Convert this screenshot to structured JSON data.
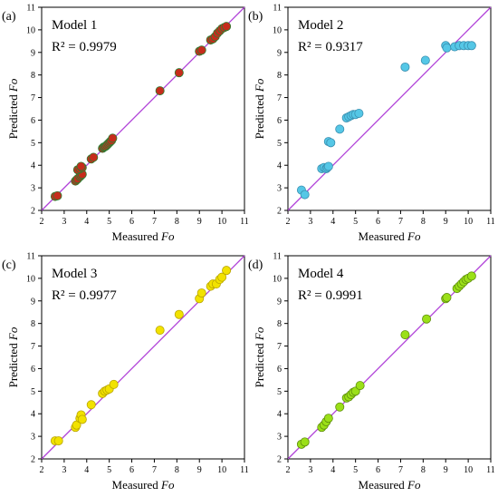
{
  "chart_data": [
    {
      "type": "scatter",
      "panel_label": "(a)",
      "model_label": "Model 1",
      "r2_label": "R² = 0.9979",
      "xlabel_prefix": "Measured ",
      "xlabel_var": "Fo",
      "ylabel_prefix": "Predicted ",
      "ylabel_var": "Fo",
      "xlim": [
        2,
        11
      ],
      "ylim": [
        2,
        11
      ],
      "ticks": [
        "2",
        "3",
        "4",
        "5",
        "6",
        "7",
        "8",
        "9",
        "10",
        "11"
      ],
      "identity_line": true,
      "marker_fill": "#c62c1c",
      "marker_edge": "#2e7d32",
      "line_color": "#b040d8",
      "points": [
        [
          2.6,
          2.62
        ],
        [
          2.7,
          2.65
        ],
        [
          3.5,
          3.3
        ],
        [
          3.55,
          3.35
        ],
        [
          3.6,
          3.4
        ],
        [
          3.7,
          3.5
        ],
        [
          3.75,
          3.55
        ],
        [
          3.8,
          3.6
        ],
        [
          3.6,
          3.8
        ],
        [
          3.7,
          3.85
        ],
        [
          3.8,
          3.9
        ],
        [
          3.75,
          3.95
        ],
        [
          4.2,
          4.28
        ],
        [
          4.3,
          4.35
        ],
        [
          4.7,
          4.75
        ],
        [
          4.75,
          4.8
        ],
        [
          4.8,
          4.82
        ],
        [
          4.85,
          4.85
        ],
        [
          4.9,
          4.9
        ],
        [
          4.95,
          4.95
        ],
        [
          5.0,
          5.0
        ],
        [
          5.05,
          5.05
        ],
        [
          5.1,
          5.1
        ],
        [
          5.15,
          5.2
        ],
        [
          7.25,
          7.3
        ],
        [
          8.1,
          8.1
        ],
        [
          9.0,
          9.05
        ],
        [
          9.1,
          9.1
        ],
        [
          9.5,
          9.55
        ],
        [
          9.6,
          9.6
        ],
        [
          9.7,
          9.7
        ],
        [
          9.8,
          9.85
        ],
        [
          9.9,
          9.95
        ],
        [
          10.0,
          10.05
        ],
        [
          10.1,
          10.1
        ],
        [
          10.2,
          10.15
        ]
      ]
    },
    {
      "type": "scatter",
      "panel_label": "(b)",
      "model_label": "Model 2",
      "r2_label": "R² = 0.9317",
      "xlabel_prefix": "Measured ",
      "xlabel_var": "Fo",
      "ylabel_prefix": "Predicted ",
      "ylabel_var": "Fo",
      "xlim": [
        2,
        11
      ],
      "ylim": [
        2,
        11
      ],
      "ticks": [
        "2",
        "3",
        "4",
        "5",
        "6",
        "7",
        "8",
        "9",
        "10",
        "11"
      ],
      "identity_line": true,
      "marker_fill": "#55c7e6",
      "marker_edge": "#3a8fb0",
      "line_color": "#b040d8",
      "points": [
        [
          2.6,
          2.9
        ],
        [
          2.75,
          2.7
        ],
        [
          3.5,
          3.85
        ],
        [
          3.6,
          3.9
        ],
        [
          3.7,
          3.85
        ],
        [
          3.75,
          3.9
        ],
        [
          3.8,
          3.95
        ],
        [
          3.8,
          5.05
        ],
        [
          3.9,
          5.0
        ],
        [
          4.3,
          5.6
        ],
        [
          4.6,
          6.1
        ],
        [
          4.7,
          6.15
        ],
        [
          4.8,
          6.2
        ],
        [
          4.9,
          6.25
        ],
        [
          5.0,
          6.25
        ],
        [
          5.15,
          6.3
        ],
        [
          7.2,
          8.35
        ],
        [
          8.1,
          8.65
        ],
        [
          9.0,
          9.3
        ],
        [
          9.05,
          9.2
        ],
        [
          9.4,
          9.25
        ],
        [
          9.6,
          9.3
        ],
        [
          9.8,
          9.3
        ],
        [
          10.0,
          9.3
        ],
        [
          10.15,
          9.3
        ]
      ]
    },
    {
      "type": "scatter",
      "panel_label": "(c)",
      "model_label": "Model 3",
      "r2_label": "R² = 0.9977",
      "xlabel_prefix": "Measured ",
      "xlabel_var": "Fo",
      "ylabel_prefix": "Predicted ",
      "ylabel_var": "Fo",
      "xlim": [
        2,
        11
      ],
      "ylim": [
        2,
        11
      ],
      "ticks": [
        "2",
        "3",
        "4",
        "5",
        "6",
        "7",
        "8",
        "9",
        "10",
        "11"
      ],
      "identity_line": true,
      "marker_fill": "#f2e200",
      "marker_edge": "#b8a500",
      "line_color": "#b040d8",
      "points": [
        [
          2.6,
          2.8
        ],
        [
          2.75,
          2.8
        ],
        [
          3.5,
          3.4
        ],
        [
          3.55,
          3.5
        ],
        [
          3.7,
          3.8
        ],
        [
          3.75,
          3.95
        ],
        [
          3.8,
          3.75
        ],
        [
          4.2,
          4.4
        ],
        [
          4.7,
          4.9
        ],
        [
          4.8,
          5.0
        ],
        [
          4.9,
          5.05
        ],
        [
          5.0,
          5.1
        ],
        [
          5.2,
          5.3
        ],
        [
          7.25,
          7.7
        ],
        [
          8.1,
          8.4
        ],
        [
          9.0,
          9.1
        ],
        [
          9.1,
          9.35
        ],
        [
          9.5,
          9.65
        ],
        [
          9.6,
          9.75
        ],
        [
          9.75,
          9.75
        ],
        [
          9.9,
          9.95
        ],
        [
          10.0,
          10.05
        ],
        [
          10.2,
          10.35
        ]
      ]
    },
    {
      "type": "scatter",
      "panel_label": "(d)",
      "model_label": "Model 4",
      "r2_label": "R² = 0.9991",
      "xlabel_prefix": "Measured ",
      "xlabel_var": "Fo",
      "ylabel_prefix": "Predicted ",
      "ylabel_var": "Fo",
      "xlim": [
        2,
        11
      ],
      "ylim": [
        2,
        11
      ],
      "ticks": [
        "2",
        "3",
        "4",
        "5",
        "6",
        "7",
        "8",
        "9",
        "10",
        "11"
      ],
      "identity_line": true,
      "marker_fill": "#9be018",
      "marker_edge": "#5e8d0d",
      "line_color": "#b040d8",
      "points": [
        [
          2.6,
          2.65
        ],
        [
          2.75,
          2.75
        ],
        [
          3.5,
          3.4
        ],
        [
          3.6,
          3.5
        ],
        [
          3.7,
          3.65
        ],
        [
          3.8,
          3.8
        ],
        [
          4.3,
          4.3
        ],
        [
          4.6,
          4.7
        ],
        [
          4.7,
          4.75
        ],
        [
          4.8,
          4.85
        ],
        [
          4.9,
          4.95
        ],
        [
          5.0,
          5.0
        ],
        [
          5.2,
          5.25
        ],
        [
          7.2,
          7.5
        ],
        [
          8.15,
          8.2
        ],
        [
          9.0,
          9.1
        ],
        [
          9.05,
          9.15
        ],
        [
          9.5,
          9.55
        ],
        [
          9.6,
          9.65
        ],
        [
          9.7,
          9.75
        ],
        [
          9.8,
          9.85
        ],
        [
          9.9,
          9.95
        ],
        [
          10.0,
          10.0
        ],
        [
          10.15,
          10.1
        ]
      ]
    }
  ]
}
